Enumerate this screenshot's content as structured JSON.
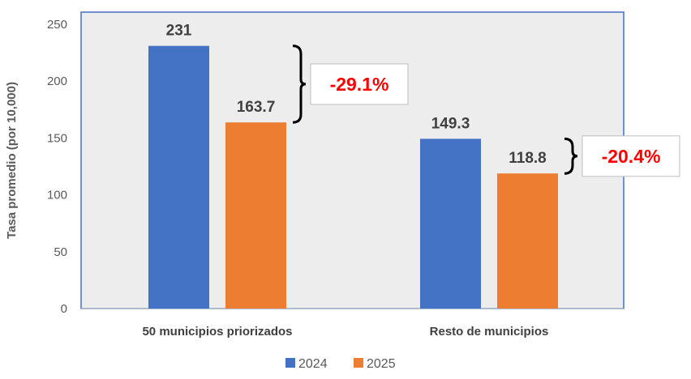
{
  "chart_data": {
    "type": "bar",
    "ylabel": "Tasa  promedio (por 10,000)",
    "categories": [
      "50 municipios priorizados",
      "Resto de municipios"
    ],
    "series": [
      {
        "name": "2024",
        "values": [
          231,
          149.3
        ],
        "labels": [
          "231",
          "149.3"
        ],
        "color": "#4472C4"
      },
      {
        "name": "2025",
        "values": [
          163.7,
          118.8
        ],
        "labels": [
          "163.7",
          "118.8"
        ],
        "color": "#ED7D31"
      }
    ],
    "ylim": [
      0,
      250
    ],
    "yticks": [
      0,
      50,
      100,
      150,
      200,
      250
    ],
    "grid": false,
    "legend": "bottom",
    "annotations": [
      "-29.1%",
      "-20.4%"
    ],
    "annotation_color": "#FF0000",
    "plot_background": "#EDEDED",
    "plot_border": "#4472C4"
  }
}
